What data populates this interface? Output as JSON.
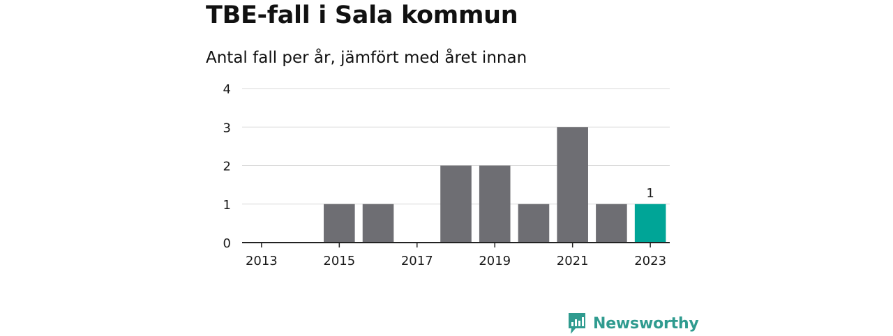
{
  "chart_data": {
    "type": "bar",
    "title": "TBE-fall i Sala kommun",
    "subtitle": "Antal fall per år, jämfört med året innan",
    "xlabel": "",
    "ylabel": "",
    "categories": [
      "2013",
      "2014",
      "2015",
      "2016",
      "2017",
      "2018",
      "2019",
      "2020",
      "2021",
      "2022",
      "2023"
    ],
    "values": [
      0,
      0,
      1,
      1,
      0,
      2,
      2,
      1,
      3,
      1,
      1
    ],
    "ylim": [
      0,
      4
    ],
    "y_ticks": [
      "0",
      "1",
      "2",
      "3",
      "4"
    ],
    "x_tick_labels": [
      "2013",
      "2015",
      "2017",
      "2019",
      "2021",
      "2023"
    ],
    "highlight_category": "2023",
    "data_labels": [
      {
        "category": "2023",
        "text": "1"
      }
    ],
    "grid": true,
    "colors": {
      "bar": "#6e6e73",
      "highlight": "#00a597",
      "grid": "#d9d9d9",
      "axis": "#222222"
    }
  },
  "brand": {
    "name": "Newsworthy",
    "icon": "newsworthy-logo-icon",
    "color": "#2f9b8f"
  }
}
